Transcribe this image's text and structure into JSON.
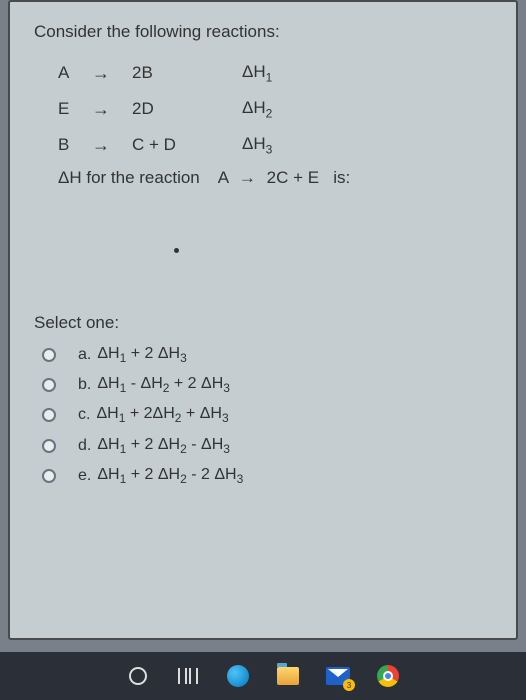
{
  "question": "Consider the following reactions:",
  "reactions": [
    {
      "reactant": "A",
      "product": "2B",
      "dh": "ΔH",
      "sub": "1"
    },
    {
      "reactant": "E",
      "product": "2D",
      "dh": "ΔH",
      "sub": "2"
    },
    {
      "reactant": "B",
      "product": "C + D",
      "dh": "ΔH",
      "sub": "3"
    }
  ],
  "final_prefix": "ΔH for the reaction",
  "final_reactant": "A",
  "final_product": "2C + E",
  "final_suffix": "is:",
  "select_label": "Select one:",
  "options": [
    {
      "letter": "a.",
      "t1": "ΔH",
      "s1": "1",
      "op1": " + 2 ΔH",
      "s2": "3",
      "rest": ""
    },
    {
      "letter": "b.",
      "t1": "ΔH",
      "s1": "1",
      "op1": " - ΔH",
      "s2": "2",
      "op2": " + 2 ΔH",
      "s3": "3"
    },
    {
      "letter": "c.",
      "t1": "ΔH",
      "s1": "1",
      "op1": " + 2ΔH",
      "s2": "2",
      "op2": " + ΔH",
      "s3": "3"
    },
    {
      "letter": "d.",
      "t1": "ΔH",
      "s1": "1",
      "op1": " + 2 ΔH",
      "s2": "2",
      "op2": " - ΔH",
      "s3": "3"
    },
    {
      "letter": "e.",
      "t1": "ΔH",
      "s1": "1",
      "op1": " + 2 ΔH",
      "s2": "2",
      "op2": " - 2 ΔH",
      "s3": "3"
    }
  ],
  "taskbar_badge": "3"
}
